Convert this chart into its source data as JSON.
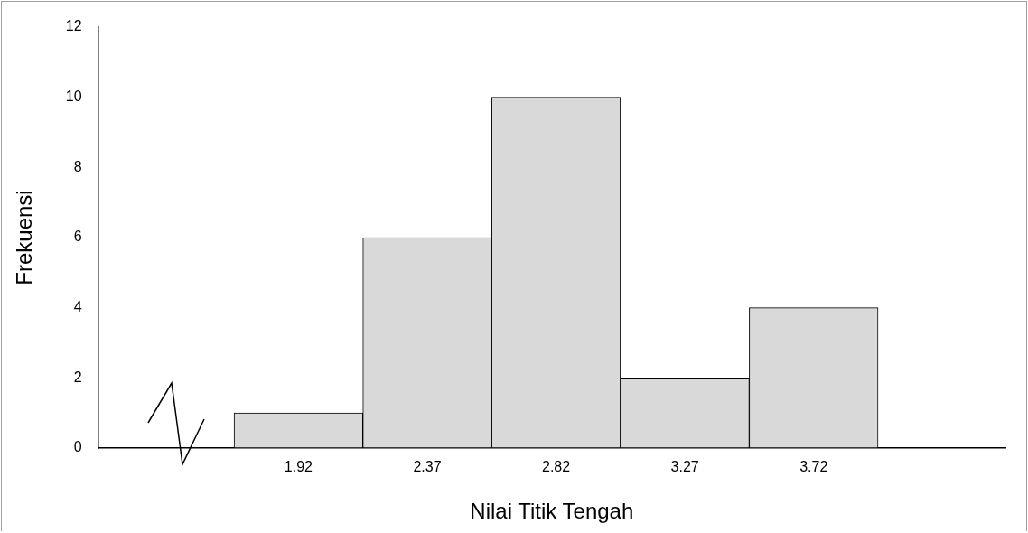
{
  "chart_data": {
    "type": "histogram",
    "xlabel": "Nilai Titik Tengah",
    "ylabel": "Frekuensi",
    "bins": [
      1.695,
      2.145,
      2.595,
      3.045,
      3.495,
      3.945
    ],
    "values": [
      1,
      6,
      10,
      2,
      4
    ],
    "color": "#d9d9d9",
    "xlim": [
      1.22,
      4.39
    ],
    "xticks": [
      1.92,
      2.37,
      2.82,
      3.27,
      3.72
    ],
    "ylim": [
      0,
      12
    ],
    "yticks": [
      0,
      2,
      4,
      6,
      8,
      10,
      12
    ],
    "grid": false,
    "legend": false
  }
}
